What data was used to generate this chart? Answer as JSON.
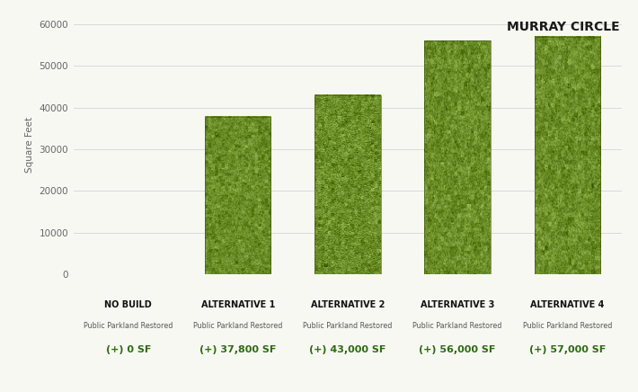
{
  "categories": [
    "NO BUILD",
    "ALTERNATIVE 1",
    "ALTERNATIVE 2",
    "ALTERNATIVE 3",
    "ALTERNATIVE 4"
  ],
  "values": [
    0,
    37800,
    43000,
    56000,
    57000
  ],
  "subtitles": [
    "Public Parkland Restored",
    "Public Parkland Restored",
    "Public Parkland Restored",
    "Public Parkland Restored",
    "Public Parkland Restored"
  ],
  "value_labels": [
    "(+) 0 SF",
    "(+) 37,800 SF",
    "(+) 43,000 SF",
    "(+) 56,000 SF",
    "(+) 57,000 SF"
  ],
  "ylabel": "Square Feet",
  "title": "MURRAY CIRCLE",
  "ylim": [
    0,
    62000
  ],
  "yticks": [
    0,
    10000,
    20000,
    30000,
    40000,
    50000,
    60000
  ],
  "ytick_labels": [
    "0",
    "10000",
    "20000",
    "30000",
    "40000",
    "50000",
    "60000"
  ],
  "bg_color": "#f8f8f3",
  "text_color_dark": "#1a1a1a",
  "value_label_color": "#2d6b10",
  "title_color": "#1a1a1a",
  "bar_width": 0.6,
  "grass_base": "#6b8c28",
  "grass_dark": "#4a6518",
  "grass_light": "#7fa030"
}
